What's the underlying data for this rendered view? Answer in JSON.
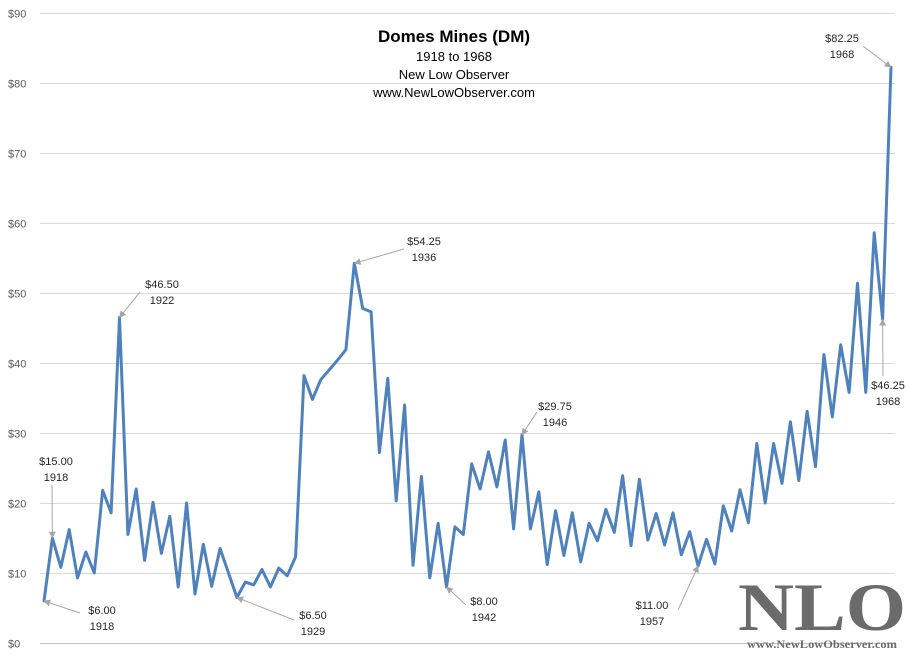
{
  "chart_data": {
    "type": "line",
    "title": "Domes Mines (DM)",
    "subtitle_lines": [
      "1918 to 1968",
      "New Low Observer",
      "www.NewLowObserver.com"
    ],
    "ylim": [
      0,
      90
    ],
    "y_ticks": [
      {
        "value": 0,
        "label": "$0"
      },
      {
        "value": 10,
        "label": "$10"
      },
      {
        "value": 20,
        "label": "$20"
      },
      {
        "value": 30,
        "label": "$30"
      },
      {
        "value": 40,
        "label": "$40"
      },
      {
        "value": 50,
        "label": "$50"
      },
      {
        "value": 60,
        "label": "$60"
      },
      {
        "value": 70,
        "label": "$70"
      },
      {
        "value": 80,
        "label": "$80"
      },
      {
        "value": 90,
        "label": "$90"
      }
    ],
    "grid": true,
    "line_color": "#4f81bd",
    "series": [
      {
        "values": [
          6.0,
          15.0,
          10.8,
          16.2,
          9.3,
          13.0,
          10.0,
          21.8,
          18.6,
          46.5,
          15.5,
          22.0,
          11.8,
          20.1,
          12.8,
          18.1,
          8.0,
          20.0,
          7.0,
          14.1,
          8.1,
          13.5,
          10.0,
          6.5,
          8.7,
          8.3,
          10.5,
          8.0,
          10.7,
          9.6,
          12.3,
          38.2,
          34.8,
          37.6,
          39.0,
          40.4,
          41.9,
          54.25,
          47.8,
          47.3,
          27.2,
          37.8,
          20.3,
          34.0,
          11.1,
          23.8,
          9.3,
          17.1,
          8.0,
          16.6,
          15.5,
          25.6,
          22.0,
          27.3,
          22.3,
          29.0,
          16.3,
          29.75,
          16.3,
          21.6,
          11.2,
          18.9,
          12.5,
          18.6,
          11.6,
          17.1,
          14.6,
          19.1,
          15.8,
          23.9,
          13.9,
          23.4,
          14.7,
          18.5,
          14.0,
          18.6,
          12.6,
          15.9,
          11.0,
          14.8,
          11.3,
          19.6,
          16.0,
          21.9,
          17.2,
          28.5,
          20.0,
          28.5,
          22.8,
          31.6,
          23.2,
          33.1,
          25.2,
          41.2,
          32.3,
          42.6,
          35.8,
          51.4,
          35.8,
          58.6,
          46.25,
          82.25
        ]
      }
    ],
    "annotations": [
      {
        "value_label": "$15.00",
        "year_label": "1918",
        "point_index": 1
      },
      {
        "value_label": "$6.00",
        "year_label": "1918",
        "point_index": 0
      },
      {
        "value_label": "$46.50",
        "year_label": "1922",
        "point_index": 9
      },
      {
        "value_label": "$6.50",
        "year_label": "1929",
        "point_index": 23
      },
      {
        "value_label": "$54.25",
        "year_label": "1936",
        "point_index": 37
      },
      {
        "value_label": "$8.00",
        "year_label": "1942",
        "point_index": 48
      },
      {
        "value_label": "$29.75",
        "year_label": "1946",
        "point_index": 57
      },
      {
        "value_label": "$11.00",
        "year_label": "1957",
        "point_index": 78
      },
      {
        "value_label": "$46.25",
        "year_label": "1968",
        "point_index": 100
      },
      {
        "value_label": "$82.25",
        "year_label": "1968",
        "point_index": 101
      }
    ]
  },
  "watermark": {
    "logo_text": "NLO",
    "url_text": "www.NewLowObserver.com"
  }
}
